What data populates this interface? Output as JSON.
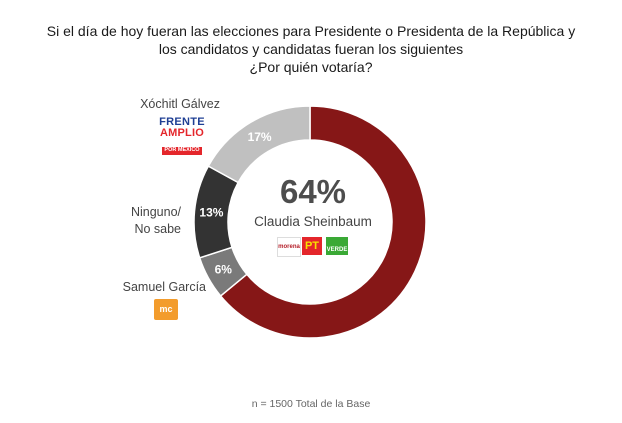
{
  "title_lines": [
    "Si el día de hoy fueran las elecciones para Presidente o Presidenta de la República y",
    "los candidatos y candidatas fueran los siguientes",
    "¿Por quién votaría?"
  ],
  "colors": {
    "sheinbaum": "#861717",
    "galvez": "#c0c0c0",
    "ninguno": "#333333",
    "garcia": "#7a7a7a"
  },
  "chart_data": {
    "type": "pie",
    "donut": true,
    "title": "Si el día de hoy fueran las elecciones para Presidente o Presidenta de la República y los candidatos y candidatas fueran los siguientes ¿Por quién votaría?",
    "slices": [
      {
        "name": "Claudia Sheinbaum",
        "value": 64,
        "label": "64%",
        "color": "#861717"
      },
      {
        "name": "Samuel García",
        "value": 6,
        "label": "6%",
        "color": "#7a7a7a"
      },
      {
        "name": "Ninguno/ No sabe",
        "value": 13,
        "label": "13%",
        "color": "#333333"
      },
      {
        "name": "Xóchitl Gálvez",
        "value": 17,
        "label": "17%",
        "color": "#c0c0c0"
      }
    ],
    "center": {
      "value": "64%",
      "name": "Claudia Sheinbaum"
    },
    "legend": "none"
  },
  "labels": {
    "galvez": "Xóchitl Gálvez",
    "ninguno_1": "Ninguno/",
    "ninguno_2": "No sabe",
    "garcia": "Samuel García"
  },
  "logos": {
    "frente_1": "FRENTE",
    "frente_2": "AMPLIO",
    "frente_3": "POR MÉXICO",
    "mc": "mc",
    "morena": "morena",
    "pt": "PT",
    "verde": "VERDE"
  },
  "footnote": "n = 1500 Total de la Base"
}
